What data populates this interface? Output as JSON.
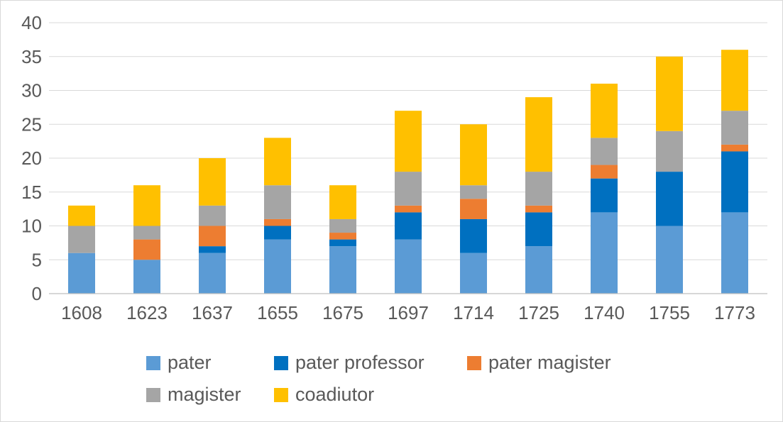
{
  "chart_data": {
    "type": "bar",
    "stacked": true,
    "title": "",
    "xlabel": "",
    "ylabel": "",
    "categories": [
      "1608",
      "1623",
      "1637",
      "1655",
      "1675",
      "1697",
      "1714",
      "1725",
      "1740",
      "1755",
      "1773"
    ],
    "ylim": [
      0,
      40
    ],
    "yticks": [
      0,
      5,
      10,
      15,
      20,
      25,
      30,
      35,
      40
    ],
    "grid": true,
    "legend_position": "bottom",
    "series": [
      {
        "name": "pater",
        "color": "#5b9bd5",
        "values": [
          6,
          5,
          6,
          8,
          7,
          8,
          6,
          7,
          12,
          10,
          12
        ]
      },
      {
        "name": "pater professor",
        "color": "#0070c0",
        "values": [
          0,
          0,
          1,
          2,
          1,
          4,
          5,
          5,
          5,
          8,
          9
        ]
      },
      {
        "name": "pater magister",
        "color": "#ed7d31",
        "values": [
          0,
          3,
          3,
          1,
          1,
          1,
          3,
          1,
          2,
          0,
          1
        ]
      },
      {
        "name": "magister",
        "color": "#a5a5a5",
        "values": [
          4,
          2,
          3,
          5,
          2,
          5,
          2,
          5,
          4,
          6,
          5
        ]
      },
      {
        "name": "coadiutor",
        "color": "#ffc000",
        "values": [
          3,
          6,
          7,
          7,
          5,
          9,
          9,
          11,
          8,
          11,
          9
        ]
      }
    ]
  }
}
